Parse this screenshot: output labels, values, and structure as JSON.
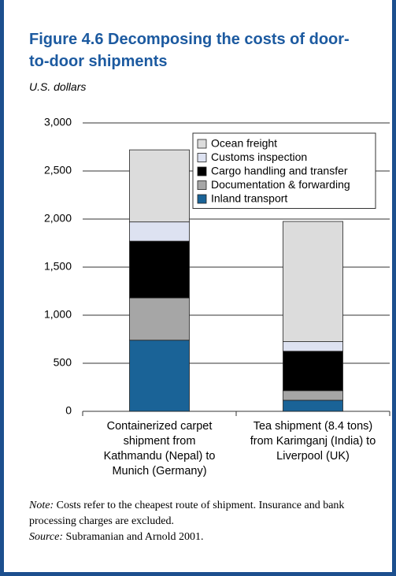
{
  "chart_data": {
    "type": "stacked_bar",
    "title": "Figure 4.6  Decomposing the costs of door-to-door shipments",
    "y_label": "U.S. dollars",
    "categories": [
      "Containerized carpet shipment from Kathmandu (Nepal) to Munich (Germany)",
      "Tea shipment (8.4 tons) from Karimganj (India) to Liverpool (UK)"
    ],
    "series": [
      {
        "name": "Inland transport",
        "color": "#1a6397",
        "values": [
          740,
          115
        ]
      },
      {
        "name": "Documentation & forwarding",
        "color": "#a6a6a6",
        "values": [
          440,
          100
        ]
      },
      {
        "name": "Cargo handling and transfer",
        "color": "#000000",
        "values": [
          590,
          410
        ]
      },
      {
        "name": "Customs inspection",
        "color": "#dde2f1",
        "values": [
          200,
          100
        ]
      },
      {
        "name": "Ocean freight",
        "color": "#dcdcdc",
        "values": [
          750,
          1250
        ]
      }
    ],
    "ylim": [
      0,
      3000
    ],
    "yticks": [
      0,
      500,
      {
        "value": 1000,
        "label": "1,000"
      },
      {
        "value": 1500,
        "label": "1,500"
      },
      {
        "value": 2000,
        "label": "2,000"
      },
      {
        "value": 2500,
        "label": "2,500"
      },
      {
        "value": 3000,
        "label": "3,000"
      }
    ],
    "grid": true,
    "legend": "top-right"
  },
  "notes": {
    "note_label": "Note:",
    "note": "Costs refer to the cheapest route of shipment. Insurance and bank processing charges are excluded.",
    "source_label": "Source:",
    "source": "Subramanian and Arnold 2001."
  }
}
